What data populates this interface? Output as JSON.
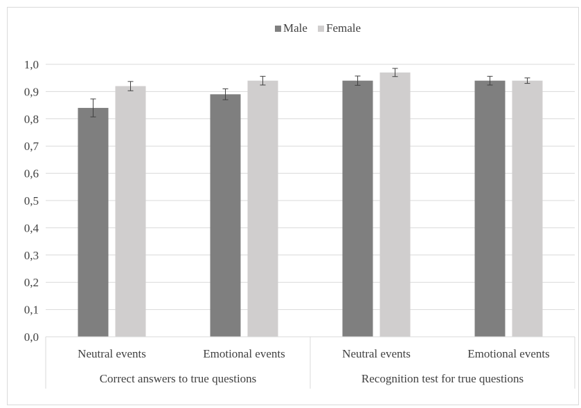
{
  "chart_data": {
    "type": "bar",
    "legend": {
      "placement": "top-center",
      "entries": [
        {
          "name": "Male",
          "color": "#7f7f7f"
        },
        {
          "name": "Female",
          "color": "#d0cece"
        }
      ]
    },
    "groups": [
      {
        "label": "Correct answers to true questions",
        "categories": [
          "Neutral events",
          "Emotional events"
        ]
      },
      {
        "label": "Recognition test for true questions",
        "categories": [
          "Neutral events",
          "Emotional events"
        ]
      }
    ],
    "categories": [
      "Neutral events",
      "Emotional events",
      "Neutral events",
      "Emotional events"
    ],
    "series": [
      {
        "name": "Male",
        "values": [
          0.84,
          0.89,
          0.94,
          0.94
        ],
        "errors": [
          0.033,
          0.02,
          0.017,
          0.016
        ],
        "color": "#7f7f7f"
      },
      {
        "name": "Female",
        "values": [
          0.92,
          0.94,
          0.97,
          0.94
        ],
        "errors": [
          0.017,
          0.016,
          0.015,
          0.01
        ],
        "color": "#d0cece"
      }
    ],
    "ylim": [
      0,
      1.0
    ],
    "yticks": [
      "0,0",
      "0,1",
      "0,2",
      "0,3",
      "0,4",
      "0,5",
      "0,6",
      "0,7",
      "0,8",
      "0,9",
      "1,0"
    ],
    "grid": true,
    "title": "",
    "xlabel": "",
    "ylabel": ""
  }
}
